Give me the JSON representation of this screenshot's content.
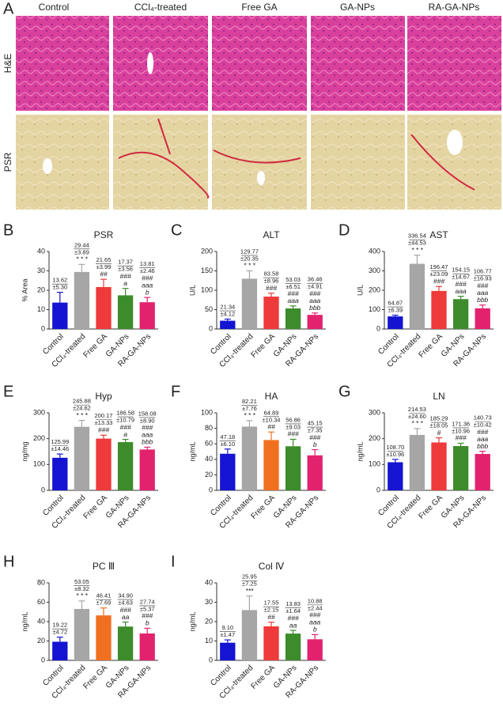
{
  "panel_a": {
    "letter": "A",
    "columns": [
      "Control",
      "CCl₄-treated",
      "Free GA",
      "GA-NPs",
      "RA-GA-NPs"
    ],
    "rows": [
      "H&E",
      "PSR"
    ]
  },
  "chart_data": [
    {
      "panel": "B",
      "type": "bar",
      "title": "PSR",
      "ylabel": "% Area",
      "categories": [
        "Control",
        "CCl₄-treated",
        "Free GA",
        "GA-NPs",
        "RA-GA-NPs"
      ],
      "values": [
        13.62,
        29.44,
        21.65,
        17.37,
        13.81
      ],
      "value_labels": [
        "13.62",
        "29.44",
        "21.65",
        "17.37",
        "13.81"
      ],
      "errors": [
        5.3,
        3.89,
        3.99,
        3.56,
        2.46
      ],
      "error_labels": [
        "±5.30",
        "±3.89",
        "±3.99",
        "±3.56",
        "±2.46"
      ],
      "annotations": [
        [],
        [
          "* * *"
        ],
        [
          "##"
        ],
        [
          "###",
          "a"
        ],
        [
          "###",
          "aaa",
          "b"
        ]
      ],
      "colors": [
        "#1414d2",
        "#a6a6a6",
        "#ee3a3a",
        "#3c8c2c",
        "#e3226e"
      ],
      "ylim": [
        0,
        40
      ],
      "yticks": [
        0,
        10,
        20,
        30,
        40
      ]
    },
    {
      "panel": "C",
      "type": "bar",
      "title": "ALT",
      "ylabel": "U/L",
      "categories": [
        "Control",
        "CCl₄-treated",
        "Free GA",
        "GA-NPs",
        "RA-GA-NPs"
      ],
      "values": [
        21.34,
        129.77,
        83.58,
        53.03,
        36.46
      ],
      "value_labels": [
        "21.34",
        "129.77",
        "83.58",
        "53.03",
        "36.46"
      ],
      "errors": [
        4.12,
        20.35,
        8.96,
        6.51,
        4.91
      ],
      "error_labels": [
        "±4.12",
        "±20.35",
        "±8.96",
        "±6.51",
        "±4.91"
      ],
      "annotations": [
        [],
        [
          "* * *"
        ],
        [
          "###"
        ],
        [
          "###",
          "aaa"
        ],
        [
          "###",
          "aaa",
          "bbb"
        ]
      ],
      "colors": [
        "#1414d2",
        "#a6a6a6",
        "#ee3a3a",
        "#3c8c2c",
        "#e3226e"
      ],
      "ylim": [
        0,
        200
      ],
      "yticks": [
        0,
        50,
        100,
        150,
        200
      ]
    },
    {
      "panel": "D",
      "type": "bar",
      "title": "AST",
      "ylabel": "U/L",
      "categories": [
        "Control",
        "CCl₄-treated",
        "Free GA",
        "GA-NPs",
        "RA-GA-NPs"
      ],
      "values": [
        64.87,
        336.54,
        196.47,
        154.15,
        106.77
      ],
      "value_labels": [
        "64.87",
        "336.54",
        "196.47",
        "154.15",
        "106.77"
      ],
      "errors": [
        6.39,
        44.53,
        23.09,
        14.67,
        16.93
      ],
      "error_labels": [
        "±6.39",
        "±44.53",
        "±23.09",
        "±14.67",
        "±16.93"
      ],
      "annotations": [
        [],
        [
          "* * *"
        ],
        [
          "###"
        ],
        [
          "###",
          "aaa"
        ],
        [
          "###",
          "aaa",
          "bbb"
        ]
      ],
      "colors": [
        "#1414d2",
        "#a6a6a6",
        "#ee3a3a",
        "#3c8c2c",
        "#e3226e"
      ],
      "ylim": [
        0,
        400
      ],
      "yticks": [
        0,
        100,
        200,
        300,
        400
      ]
    },
    {
      "panel": "E",
      "type": "bar",
      "title": "Hyp",
      "ylabel": "ng/mg",
      "categories": [
        "Control",
        "CCl₄-treated",
        "Free GA",
        "GA-NPs",
        "RA-GA-NPs"
      ],
      "values": [
        125.99,
        245.88,
        200.17,
        186.58,
        158.08
      ],
      "value_labels": [
        "125.99",
        "245.88",
        "200.17",
        "186.58",
        "158.08"
      ],
      "errors": [
        14.46,
        24.62,
        13.33,
        10.79,
        8.9
      ],
      "error_labels": [
        "±14.46",
        "±24.62",
        "±13.33",
        "±10.79",
        "±8.90"
      ],
      "annotations": [
        [],
        [
          "* * *"
        ],
        [
          "###"
        ],
        [
          "###",
          "a"
        ],
        [
          "###",
          "aaa",
          "bbb"
        ]
      ],
      "colors": [
        "#1414d2",
        "#a6a6a6",
        "#ee3a3a",
        "#3c8c2c",
        "#e3226e"
      ],
      "ylim": [
        0,
        300
      ],
      "yticks": [
        0,
        100,
        200,
        300
      ]
    },
    {
      "panel": "F",
      "type": "bar",
      "title": "HA",
      "ylabel": "ng/mL",
      "categories": [
        "Control",
        "CCl₄-treated",
        "Free GA",
        "GA-NPs",
        "RA-GA-NPs"
      ],
      "values": [
        47.18,
        82.21,
        64.89,
        56.86,
        45.15
      ],
      "value_labels": [
        "47.18",
        "82.21",
        "64.89",
        "56.86",
        "45.15"
      ],
      "errors": [
        6.1,
        7.76,
        10.34,
        9.03,
        7.35
      ],
      "error_labels": [
        "±6.10",
        "±7.76",
        "±10.34",
        "±9.03",
        "±7.35"
      ],
      "annotations": [
        [],
        [
          "* * *"
        ],
        [
          "##"
        ],
        [
          "###"
        ],
        [
          "###",
          "b"
        ]
      ],
      "colors": [
        "#1414d2",
        "#a6a6a6",
        "#f07020",
        "#3c8c2c",
        "#e3226e"
      ],
      "ylim": [
        0,
        100
      ],
      "yticks": [
        0,
        20,
        40,
        60,
        80,
        100
      ]
    },
    {
      "panel": "G",
      "type": "bar",
      "title": "LN",
      "ylabel": "ng/mL",
      "categories": [
        "Control",
        "CCl₄-treated",
        "Free GA",
        "GA-NPs",
        "RA-GA-NPs"
      ],
      "values": [
        108.7,
        214.53,
        185.29,
        171.36,
        140.73
      ],
      "value_labels": [
        "108.70",
        "214.53",
        "185.29",
        "171.36",
        "140.73"
      ],
      "errors": [
        10.96,
        24.6,
        18.05,
        10.96,
        10.42
      ],
      "error_labels": [
        "±10.96",
        "±24.60",
        "±18.05",
        "±10.96",
        "±10.42"
      ],
      "annotations": [
        [],
        [
          "* * *"
        ],
        [
          "#"
        ],
        [
          "###"
        ],
        [
          "###",
          "aaa",
          "bbb"
        ]
      ],
      "colors": [
        "#1414d2",
        "#a6a6a6",
        "#ee3a3a",
        "#3c8c2c",
        "#e3226e"
      ],
      "ylim": [
        0,
        300
      ],
      "yticks": [
        0,
        100,
        200,
        300
      ]
    },
    {
      "panel": "H",
      "type": "bar",
      "title": "PC Ⅲ",
      "ylabel": "ng/mL",
      "categories": [
        "Control",
        "CCl₄-treated",
        "Free GA",
        "GA-NPs",
        "RA-GA-NPs"
      ],
      "values": [
        19.22,
        53.05,
        46.41,
        34.9,
        27.74
      ],
      "value_labels": [
        "19.22",
        "53.05",
        "46.41",
        "34.90",
        "27.74"
      ],
      "errors": [
        4.72,
        8.32,
        7.69,
        4.63,
        5.37
      ],
      "error_labels": [
        "±4.72",
        "±8.32",
        "±7.69",
        "±4.63",
        "±5.37"
      ],
      "annotations": [
        [],
        [
          "* * *"
        ],
        [],
        [
          "###",
          "aa"
        ],
        [
          "###",
          "b"
        ]
      ],
      "colors": [
        "#1414d2",
        "#a6a6a6",
        "#f07020",
        "#3c8c2c",
        "#e3226e"
      ],
      "ylim": [
        0,
        80
      ],
      "yticks": [
        0,
        20,
        40,
        60,
        80
      ]
    },
    {
      "panel": "I",
      "type": "bar",
      "title": "Col Ⅳ",
      "ylabel": "ng/mL",
      "categories": [
        "Control",
        "CCl₄-treated",
        "Free GA",
        "GA-NPs",
        "RA-GA-NPs"
      ],
      "values": [
        9.1,
        25.95,
        17.55,
        13.83,
        10.88
      ],
      "value_labels": [
        "9.10",
        "25.95",
        "17.55",
        "13.83",
        "10.88"
      ],
      "errors": [
        1.47,
        7.25,
        2.15,
        1.64,
        2.44
      ],
      "error_labels": [
        "±1.47",
        "±7.25",
        "±2.15",
        "±1.64",
        "±2.44"
      ],
      "annotations": [
        [],
        [
          "***"
        ],
        [
          "##"
        ],
        [
          "###",
          "aa"
        ],
        [
          "###",
          "aaa",
          "b"
        ]
      ],
      "colors": [
        "#1414d2",
        "#a6a6a6",
        "#ee3a3a",
        "#3c8c2c",
        "#e3226e"
      ],
      "ylim": [
        0,
        40
      ],
      "yticks": [
        0,
        10,
        20,
        30,
        40
      ]
    }
  ]
}
